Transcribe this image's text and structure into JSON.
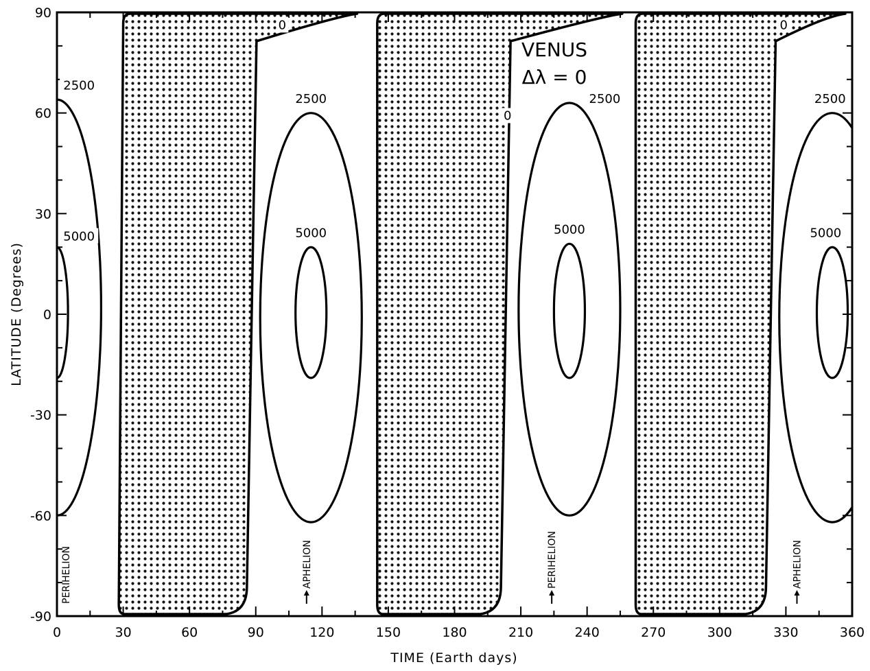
{
  "chart_data": {
    "type": "contour",
    "title": "VENUS",
    "subtitle": "Δλ = 0",
    "xlabel": "TIME  (Earth days)",
    "ylabel": "LATITUDE  (Degrees)",
    "xlim": [
      0,
      360
    ],
    "ylim": [
      -90,
      90
    ],
    "x_ticks": [
      0,
      30,
      60,
      90,
      120,
      150,
      180,
      210,
      240,
      270,
      300,
      330,
      360
    ],
    "x_tick_labels": [
      "0",
      "30",
      "60",
      "90",
      "120",
      "150",
      "180",
      "210",
      "240",
      "270",
      "300",
      "330",
      "360"
    ],
    "y_ticks": [
      -90,
      -60,
      -30,
      0,
      30,
      60,
      90
    ],
    "y_tick_labels": [
      "-90",
      "-60",
      "-30",
      "0",
      "30",
      "60",
      "90"
    ],
    "grid": false,
    "shading": "stippled regions = zero insolation (night)",
    "night_regions": [
      {
        "x_start_bottom": 28,
        "x_start_top": 30,
        "x_end_bottom": 86,
        "x_end_top": 139
      },
      {
        "x_start_bottom": 145,
        "x_start_top": 145,
        "x_end_bottom": 201,
        "x_end_top": 259
      },
      {
        "x_start_bottom": 262,
        "x_start_top": 262,
        "x_end_bottom": 321,
        "x_end_top": 360
      }
    ],
    "contours": [
      {
        "level": 2500,
        "label": "2500",
        "center_x": 0,
        "center_y": 2,
        "half_width_x": 20,
        "y_min": -60,
        "y_max": 64,
        "clipped_left": true
      },
      {
        "level": 5000,
        "label": "5000",
        "center_x": 0,
        "center_y": 1,
        "half_width_x": 5,
        "y_min": -19,
        "y_max": 20,
        "clipped_left": true
      },
      {
        "level": 2500,
        "label": "2500",
        "center_x": 115,
        "center_y": -1,
        "half_width_x": 23,
        "y_min": -62,
        "y_max": 60
      },
      {
        "level": 5000,
        "label": "5000",
        "center_x": 115,
        "center_y": 1,
        "half_width_x": 7,
        "y_min": -19,
        "y_max": 20
      },
      {
        "level": 2500,
        "label": "2500",
        "center_x": 232,
        "center_y": 1,
        "half_width_x": 23,
        "y_min": -60,
        "y_max": 63
      },
      {
        "level": 5000,
        "label": "5000",
        "center_x": 232,
        "center_y": 1,
        "half_width_x": 7,
        "y_min": -19,
        "y_max": 21
      },
      {
        "level": 2500,
        "label": "2500",
        "center_x": 351,
        "center_y": -1,
        "half_width_x": 24,
        "y_min": -62,
        "y_max": 60,
        "clipped_right": true
      },
      {
        "level": 5000,
        "label": "5000",
        "center_x": 351,
        "center_y": 1,
        "half_width_x": 7,
        "y_min": -19,
        "y_max": 20
      }
    ],
    "zero_labels": [
      {
        "text": "0",
        "x": 102,
        "y": 85
      },
      {
        "text": "0",
        "x": 204,
        "y": 58
      },
      {
        "text": "0",
        "x": 329,
        "y": 85
      }
    ],
    "level_labels": [
      {
        "text": "2500",
        "x": 10,
        "y": 67
      },
      {
        "text": "5000",
        "x": 10,
        "y": 22
      },
      {
        "text": "2500",
        "x": 115,
        "y": 63
      },
      {
        "text": "5000",
        "x": 115,
        "y": 23
      },
      {
        "text": "2500",
        "x": 248,
        "y": 63
      },
      {
        "text": "5000",
        "x": 232,
        "y": 24
      },
      {
        "text": "2500",
        "x": 350,
        "y": 63
      },
      {
        "text": "5000",
        "x": 348,
        "y": 23
      }
    ],
    "annotations": [
      {
        "text": "PERIHELION",
        "x": 4,
        "arrow": false
      },
      {
        "text": "APHELION",
        "x": 113,
        "arrow": true
      },
      {
        "text": "PERIHELION",
        "x": 224,
        "arrow": true
      },
      {
        "text": "APHELION",
        "x": 335,
        "arrow": true
      }
    ]
  }
}
